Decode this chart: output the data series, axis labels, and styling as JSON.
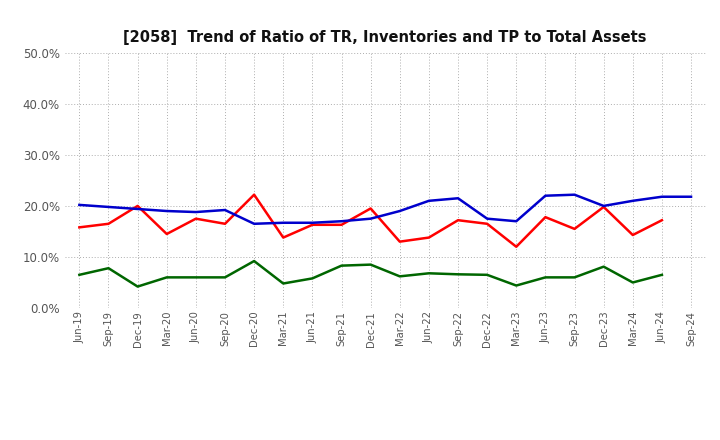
{
  "title": "[2058]  Trend of Ratio of TR, Inventories and TP to Total Assets",
  "x_labels": [
    "Jun-19",
    "Sep-19",
    "Dec-19",
    "Mar-20",
    "Jun-20",
    "Sep-20",
    "Dec-20",
    "Mar-21",
    "Jun-21",
    "Sep-21",
    "Dec-21",
    "Mar-22",
    "Jun-22",
    "Sep-22",
    "Dec-22",
    "Mar-23",
    "Jun-23",
    "Sep-23",
    "Dec-23",
    "Mar-24",
    "Jun-24",
    "Sep-24"
  ],
  "trade_receivables": [
    0.158,
    0.165,
    0.2,
    0.145,
    0.175,
    0.165,
    0.222,
    0.138,
    0.163,
    0.163,
    0.195,
    0.13,
    0.138,
    0.172,
    0.165,
    0.12,
    0.178,
    0.155,
    0.198,
    0.143,
    0.172,
    null
  ],
  "inventories": [
    0.202,
    0.198,
    0.194,
    0.19,
    0.188,
    0.192,
    0.165,
    0.167,
    0.167,
    0.17,
    0.175,
    0.19,
    0.21,
    0.215,
    0.175,
    0.17,
    0.22,
    0.222,
    0.2,
    0.21,
    0.218,
    0.218
  ],
  "trade_payables": [
    0.065,
    0.078,
    0.042,
    0.06,
    0.06,
    0.06,
    0.092,
    0.048,
    0.058,
    0.083,
    0.085,
    0.062,
    0.068,
    0.066,
    0.065,
    0.044,
    0.06,
    0.06,
    0.081,
    0.05,
    0.065,
    null
  ],
  "tr_color": "#ff0000",
  "inv_color": "#0000cc",
  "tp_color": "#006600",
  "ylim": [
    0.0,
    0.5
  ],
  "yticks": [
    0.0,
    0.1,
    0.2,
    0.3,
    0.4,
    0.5
  ],
  "bg_color": "#ffffff",
  "grid_color": "#999999"
}
